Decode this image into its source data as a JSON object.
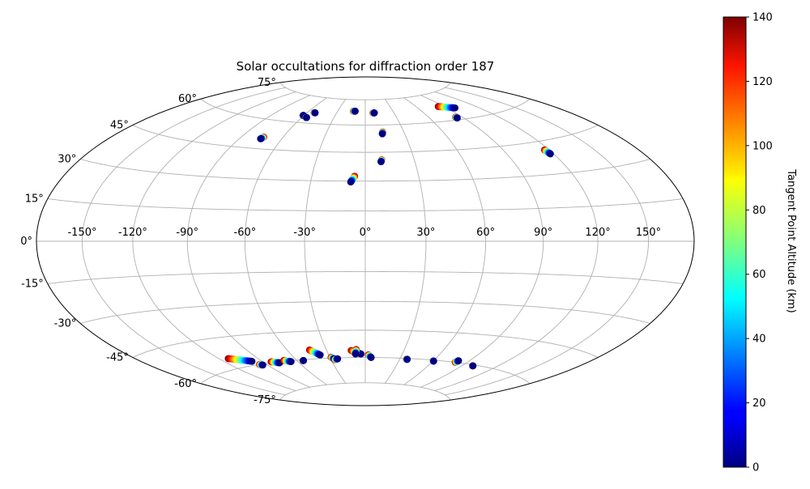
{
  "chart_data": {
    "type": "scatter",
    "projection": "hammer",
    "title": "Solar occultations for diffraction order 187",
    "lon_ticks": [
      -150,
      -120,
      -90,
      -60,
      -30,
      0,
      30,
      60,
      90,
      120,
      150
    ],
    "lon_tick_labels": [
      "-150°",
      "-120°",
      "-90°",
      "-60°",
      "-30°",
      "0°",
      "30°",
      "60°",
      "90°",
      "120°",
      "150°"
    ],
    "lat_ticks": [
      -75,
      -60,
      -45,
      -30,
      -15,
      0,
      15,
      30,
      45,
      60,
      75
    ],
    "lat_tick_labels": [
      "-75°",
      "-60°",
      "-45°",
      "-30°",
      "-15°",
      "0°",
      "15°",
      "30°",
      "45°",
      "60°",
      "75°"
    ],
    "grid": true,
    "colorbar": {
      "label": "Tangent Point Altitude (km)",
      "min": 0,
      "max": 140,
      "ticks": [
        0,
        20,
        40,
        60,
        80,
        100,
        120,
        140
      ],
      "colormap": "jet"
    },
    "tracks": [
      {
        "lon_start": -74.0,
        "lat_start": 51.0,
        "lon_end": -75.0,
        "lat_end": 50.0
      },
      {
        "lon_start": -61.0,
        "lat_start": 64.0,
        "lon_end": -60.5,
        "lat_end": 64.0
      },
      {
        "lon_start": -56.0,
        "lat_start": 63.0,
        "lon_end": -55.5,
        "lat_end": 63.0
      },
      {
        "lon_start": -53.0,
        "lat_start": 66.0,
        "lon_end": -52.0,
        "lat_end": 66.0
      },
      {
        "lon_start": -13.0,
        "lat_start": 68.0,
        "lon_end": -11.0,
        "lat_end": 68.0
      },
      {
        "lon_start": 8.0,
        "lat_start": 67.0,
        "lon_end": 9.5,
        "lat_end": 67.0
      },
      {
        "lon_start": 13.5,
        "lat_start": 56.0,
        "lon_end": 13.0,
        "lat_end": 55.0
      },
      {
        "lon_start": 10.0,
        "lat_start": 41.0,
        "lon_end": 9.5,
        "lat_end": 40.0
      },
      {
        "lon_start": -6.0,
        "lat_start": 32.5,
        "lon_end": -8.0,
        "lat_end": 29.5
      },
      {
        "lon_start": 84.0,
        "lat_start": 68.0,
        "lon_end": 98.0,
        "lat_end": 66.0
      },
      {
        "lon_start": 84.0,
        "lat_start": 61.5,
        "lon_end": 84.5,
        "lat_end": 61.0
      },
      {
        "lon_start": 117.0,
        "lat_start": 41.0,
        "lon_end": 118.0,
        "lat_end": 39.0
      },
      {
        "lon_start": -113.0,
        "lat_start": -55.0,
        "lon_end": -98.0,
        "lat_end": -58.0
      },
      {
        "lon_start": -96.0,
        "lat_start": -60.0,
        "lon_end": -94.0,
        "lat_end": -60.5
      },
      {
        "lon_start": -83.0,
        "lat_start": -59.5,
        "lon_end": -77.0,
        "lat_end": -60.5
      },
      {
        "lon_start": -71.0,
        "lat_start": -59.5,
        "lon_end": -66.0,
        "lat_end": -60.5
      },
      {
        "lon_start": -55.0,
        "lat_start": -60.5,
        "lon_end": -54.5,
        "lat_end": -60.5
      },
      {
        "lon_start": -43.0,
        "lat_start": -55.0,
        "lon_end": -37.0,
        "lat_end": -58.0
      },
      {
        "lon_start": -29.0,
        "lat_start": -59.5,
        "lon_end": -27.0,
        "lat_end": -60.5
      },
      {
        "lon_start": -27.0,
        "lat_start": -61.0,
        "lon_end": -24.0,
        "lat_end": -60.5
      },
      {
        "lon_start": -11.0,
        "lat_start": -56.0,
        "lon_end": -3.5,
        "lat_end": -58.0
      },
      {
        "lon_start": -7.0,
        "lat_start": -55.5,
        "lon_end": -8.0,
        "lat_end": -58.0
      },
      {
        "lon_start": 2.5,
        "lat_start": -58.5,
        "lon_end": 5.0,
        "lat_end": -60.0
      },
      {
        "lon_start": 36.0,
        "lat_start": -60.5,
        "lon_end": 36.5,
        "lat_end": -60.5
      },
      {
        "lon_start": 60.0,
        "lat_start": -60.5,
        "lon_end": 60.5,
        "lat_end": -60.5
      },
      {
        "lon_start": 80.0,
        "lat_start": -60.0,
        "lon_end": 81.0,
        "lat_end": -59.0
      },
      {
        "lon_start": 99.0,
        "lat_start": -60.5,
        "lon_end": 99.5,
        "lat_end": -60.5
      }
    ]
  }
}
